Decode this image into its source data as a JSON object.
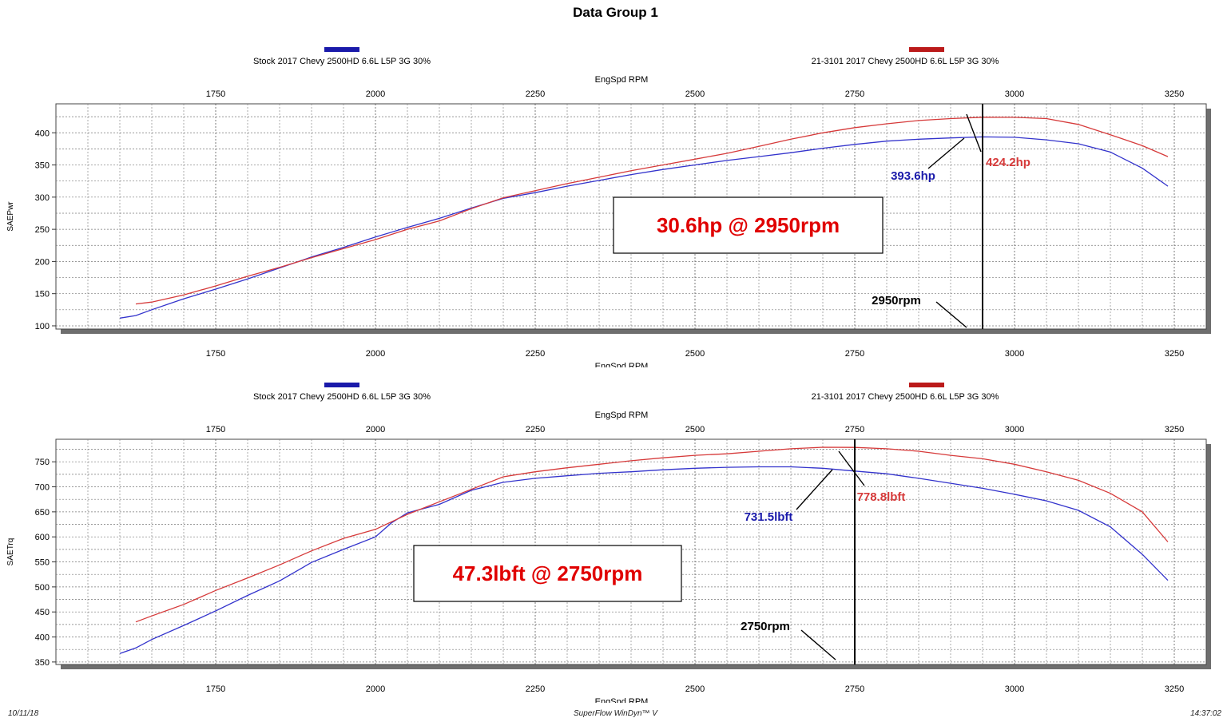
{
  "title": "Data Group 1",
  "footer": {
    "date": "10/11/18",
    "software": "SuperFlow WinDyn™ V",
    "time": "14:37:02"
  },
  "colors": {
    "stock": "#3333cc",
    "modified": "#d63a3a",
    "legend_stock": "#1a1aaa",
    "legend_modified": "#bb1a1a"
  },
  "legend": {
    "stock": "Stock 2017 Chevy 2500HD 6.6L L5P 3G 30%",
    "modified": "21-3101 2017 Chevy 2500HD 6.6L L5P 3G 30%"
  },
  "chart_data": [
    {
      "type": "line",
      "xlabel": "EngSpd RPM",
      "ylabel": "SAEPwr",
      "xlim": [
        1500,
        3300
      ],
      "ylim": [
        95,
        445
      ],
      "xticks": [
        1750,
        2000,
        2250,
        2500,
        2750,
        3000,
        3250
      ],
      "yticks": [
        100,
        150,
        200,
        250,
        300,
        350,
        400
      ],
      "series": [
        {
          "name": "Stock 2017 Chevy 2500HD 6.6L L5P 3G 30%",
          "key": "stock",
          "x": [
            1600,
            1625,
            1650,
            1700,
            1750,
            1800,
            1850,
            1900,
            1950,
            2000,
            2050,
            2100,
            2150,
            2200,
            2250,
            2300,
            2350,
            2400,
            2450,
            2500,
            2550,
            2600,
            2650,
            2700,
            2750,
            2800,
            2850,
            2900,
            2950,
            3000,
            3050,
            3100,
            3150,
            3200,
            3240
          ],
          "y": [
            112,
            116,
            125,
            142,
            157,
            173,
            190,
            207,
            222,
            238,
            253,
            267,
            283,
            298,
            307,
            317,
            326,
            335,
            343,
            350,
            357,
            363,
            369,
            376,
            382,
            387,
            390,
            392,
            393.6,
            393,
            389,
            383,
            370,
            345,
            317
          ]
        },
        {
          "name": "21-3101 2017 Chevy 2500HD 6.6L L5P 3G 30%",
          "key": "modified",
          "x": [
            1625,
            1650,
            1700,
            1750,
            1800,
            1850,
            1900,
            1950,
            2000,
            2050,
            2100,
            2150,
            2200,
            2250,
            2300,
            2350,
            2400,
            2450,
            2500,
            2550,
            2600,
            2650,
            2700,
            2750,
            2800,
            2850,
            2900,
            2950,
            3000,
            3050,
            3100,
            3150,
            3200,
            3240
          ],
          "y": [
            134,
            137,
            148,
            162,
            177,
            191,
            206,
            220,
            234,
            250,
            263,
            282,
            299,
            310,
            321,
            331,
            341,
            350,
            359,
            368,
            379,
            390,
            400,
            408,
            414,
            419,
            422,
            424.2,
            424,
            422,
            413,
            397,
            380,
            363
          ]
        }
      ],
      "annotations": {
        "stock_peak": "393.6hp",
        "modified_peak": "424.2hp",
        "delta_box": "30.6hp @ 2950rpm",
        "rpm_marker": "2950rpm",
        "marker_rpm": 2950
      }
    },
    {
      "type": "line",
      "xlabel": "EngSpd RPM",
      "ylabel": "SAETrq",
      "xlim": [
        1500,
        3300
      ],
      "ylim": [
        345,
        795
      ],
      "xticks": [
        1750,
        2000,
        2250,
        2500,
        2750,
        3000,
        3250
      ],
      "yticks": [
        350,
        400,
        450,
        500,
        550,
        600,
        650,
        700,
        750
      ],
      "series": [
        {
          "name": "Stock 2017 Chevy 2500HD 6.6L L5P 3G 30%",
          "key": "stock",
          "x": [
            1600,
            1625,
            1650,
            1700,
            1750,
            1800,
            1850,
            1900,
            1950,
            2000,
            2025,
            2050,
            2100,
            2150,
            2200,
            2250,
            2300,
            2350,
            2400,
            2450,
            2500,
            2550,
            2600,
            2650,
            2700,
            2750,
            2800,
            2850,
            2900,
            2950,
            3000,
            3050,
            3100,
            3150,
            3200,
            3240
          ],
          "y": [
            367,
            378,
            395,
            423,
            452,
            483,
            512,
            549,
            575,
            600,
            628,
            648,
            665,
            693,
            709,
            717,
            722,
            727,
            730,
            734,
            737,
            739,
            740,
            740,
            737,
            731.5,
            726,
            717,
            707,
            697,
            685,
            672,
            653,
            620,
            565,
            513
          ]
        },
        {
          "name": "21-3101 2017 Chevy 2500HD 6.6L L5P 3G 30%",
          "key": "modified",
          "x": [
            1625,
            1650,
            1700,
            1750,
            1800,
            1850,
            1900,
            1950,
            2000,
            2050,
            2100,
            2150,
            2200,
            2250,
            2300,
            2350,
            2400,
            2450,
            2500,
            2550,
            2600,
            2650,
            2700,
            2750,
            2800,
            2850,
            2900,
            2950,
            3000,
            3050,
            3100,
            3150,
            3200,
            3240
          ],
          "y": [
            430,
            442,
            465,
            493,
            518,
            544,
            572,
            597,
            615,
            645,
            670,
            695,
            720,
            730,
            738,
            745,
            752,
            758,
            763,
            766,
            771,
            776,
            779,
            778.8,
            776,
            771,
            763,
            756,
            745,
            730,
            713,
            687,
            650,
            590
          ]
        }
      ],
      "annotations": {
        "stock_peak": "731.5lbft",
        "modified_peak": "778.8lbft",
        "delta_box": "47.3lbft @ 2750rpm",
        "rpm_marker": "2750rpm",
        "marker_rpm": 2750
      }
    }
  ]
}
